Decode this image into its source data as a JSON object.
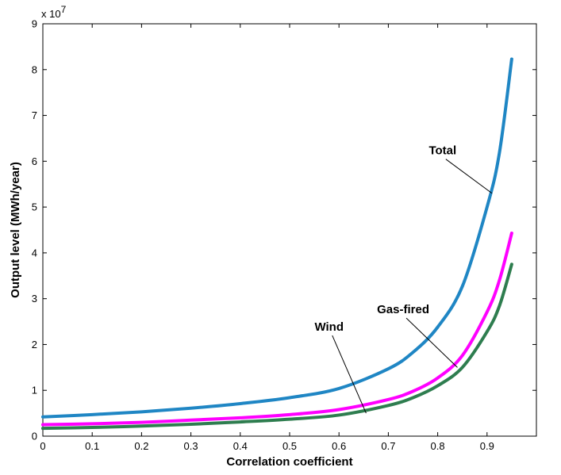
{
  "chart_data": {
    "type": "line",
    "title": "",
    "xlabel": "Correlation coefficient",
    "ylabel": "Output level (MWh/year)",
    "y_multiplier_base": "x 10",
    "y_multiplier_exponent": "7",
    "xlim": [
      0,
      1
    ],
    "ylim": [
      0,
      9
    ],
    "x_ticks": [
      0,
      0.1,
      0.2,
      0.3,
      0.4,
      0.5,
      0.6,
      0.7,
      0.8,
      0.9
    ],
    "y_ticks": [
      0,
      1,
      2,
      3,
      4,
      5,
      6,
      7,
      8,
      9
    ],
    "grid": false,
    "legend": "none",
    "series": [
      {
        "name": "Total",
        "color": "#1f86c4",
        "x": [
          0,
          0.1,
          0.2,
          0.3,
          0.4,
          0.5,
          0.6,
          0.7,
          0.75,
          0.8,
          0.85,
          0.9,
          0.925,
          0.95
        ],
        "y": [
          0.42,
          0.47,
          0.53,
          0.61,
          0.71,
          0.84,
          1.04,
          1.47,
          1.83,
          2.38,
          3.27,
          5.0,
          6.18,
          8.23
        ]
      },
      {
        "name": "Gas-fired",
        "color": "#ff00ff",
        "x": [
          0,
          0.1,
          0.2,
          0.3,
          0.4,
          0.5,
          0.6,
          0.7,
          0.75,
          0.8,
          0.85,
          0.9,
          0.925,
          0.95
        ],
        "y": [
          0.25,
          0.27,
          0.3,
          0.35,
          0.4,
          0.47,
          0.58,
          0.8,
          0.98,
          1.27,
          1.76,
          2.71,
          3.4,
          4.43
        ]
      },
      {
        "name": "Wind",
        "color": "#2e7d4f",
        "x": [
          0,
          0.1,
          0.2,
          0.3,
          0.4,
          0.5,
          0.6,
          0.7,
          0.75,
          0.8,
          0.85,
          0.9,
          0.925,
          0.95
        ],
        "y": [
          0.17,
          0.19,
          0.22,
          0.26,
          0.31,
          0.37,
          0.46,
          0.67,
          0.84,
          1.1,
          1.5,
          2.28,
          2.84,
          3.75
        ]
      }
    ],
    "annotations": [
      {
        "text": "Total",
        "target_x": 0.91,
        "target_y": 5.3,
        "label_x": 0.81,
        "label_y": 6.15
      },
      {
        "text": "Gas-fired",
        "target_x": 0.84,
        "target_y": 1.5,
        "label_x": 0.73,
        "label_y": 2.68
      },
      {
        "text": "Wind",
        "target_x": 0.655,
        "target_y": 0.5,
        "label_x": 0.58,
        "label_y": 2.3
      }
    ]
  }
}
